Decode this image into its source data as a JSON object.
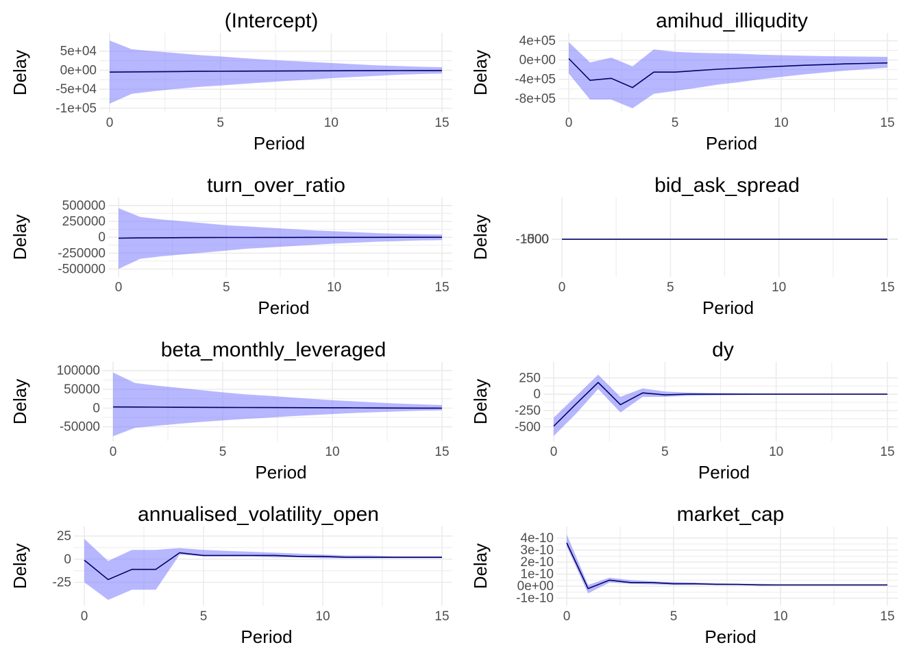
{
  "chart_data": [
    {
      "type": "line",
      "title": "(Intercept)",
      "xlabel": "Period",
      "ylabel": "Delay",
      "xlim": [
        0,
        15
      ],
      "ylim": [
        -100000,
        80000
      ],
      "x_ticks": [
        0,
        5,
        10,
        15
      ],
      "y_ticks": [
        -100000,
        -50000,
        0,
        50000
      ],
      "y_tick_labels": [
        "-1e+05",
        "-5e+04",
        "0e+00",
        "5e+04"
      ],
      "grid": true,
      "series": [
        {
          "x": [
            0,
            1,
            2,
            3,
            4,
            5,
            6,
            7,
            8,
            9,
            10,
            11,
            12,
            13,
            14,
            15
          ],
          "values": [
            -5000,
            -4500,
            -4000,
            -3500,
            -3000,
            -2800,
            -2500,
            -2300,
            -2000,
            -1800,
            -1600,
            -1400,
            -1200,
            -1000,
            -900,
            -800
          ],
          "lower": [
            -88000,
            -62000,
            -55000,
            -49000,
            -44000,
            -40000,
            -36000,
            -32000,
            -28000,
            -25000,
            -21000,
            -18000,
            -15000,
            -12000,
            -10000,
            -8500
          ],
          "upper": [
            78000,
            55000,
            50000,
            45000,
            40000,
            36000,
            32000,
            28000,
            25000,
            22000,
            19000,
            16000,
            13000,
            11000,
            9000,
            8000
          ]
        }
      ]
    },
    {
      "type": "line",
      "title": "amihud_illiqudity",
      "xlabel": "Period",
      "ylabel": "Delay",
      "xlim": [
        0,
        15
      ],
      "ylim": [
        -1000000,
        420000
      ],
      "x_ticks": [
        0,
        5,
        10,
        15
      ],
      "y_ticks": [
        -800000,
        -400000,
        0,
        400000
      ],
      "y_tick_labels": [
        "-8e+05",
        "-4e+05",
        "0e+00",
        "4e+05"
      ],
      "grid": true,
      "series": [
        {
          "x": [
            0,
            1,
            2,
            3,
            4,
            5,
            6,
            7,
            8,
            9,
            10,
            11,
            12,
            13,
            14,
            15
          ],
          "values": [
            30000,
            -420000,
            -380000,
            -570000,
            -250000,
            -250000,
            -220000,
            -190000,
            -170000,
            -150000,
            -130000,
            -110000,
            -95000,
            -80000,
            -70000,
            -60000
          ],
          "lower": [
            -280000,
            -820000,
            -820000,
            -1000000,
            -700000,
            -640000,
            -580000,
            -510000,
            -460000,
            -400000,
            -350000,
            -300000,
            -260000,
            -220000,
            -190000,
            -160000
          ],
          "upper": [
            370000,
            -50000,
            50000,
            -130000,
            220000,
            170000,
            150000,
            140000,
            130000,
            110000,
            100000,
            90000,
            80000,
            75000,
            70000,
            65000
          ]
        }
      ]
    },
    {
      "type": "line",
      "title": "turn_over_ratio",
      "xlabel": "Period",
      "ylabel": "Delay",
      "xlim": [
        0,
        15
      ],
      "ylim": [
        -560000,
        520000
      ],
      "x_ticks": [
        0,
        5,
        10,
        15
      ],
      "y_ticks": [
        -500000,
        -250000,
        0,
        250000,
        500000
      ],
      "y_tick_labels": [
        "-500000",
        "-250000",
        "0",
        "250000",
        "500000"
      ],
      "grid": true,
      "series": [
        {
          "x": [
            0,
            1,
            2,
            3,
            4,
            5,
            6,
            7,
            8,
            9,
            10,
            11,
            12,
            13,
            14,
            15
          ],
          "values": [
            -15000,
            -10000,
            -8000,
            -6000,
            -5000,
            -4000,
            -3500,
            -3000,
            -2500,
            -2000,
            -1800,
            -1500,
            -1200,
            -1000,
            -900,
            -800
          ],
          "lower": [
            -500000,
            -340000,
            -300000,
            -270000,
            -240000,
            -210000,
            -180000,
            -160000,
            -140000,
            -120000,
            -100000,
            -85000,
            -70000,
            -60000,
            -50000,
            -45000
          ],
          "upper": [
            460000,
            320000,
            280000,
            250000,
            220000,
            190000,
            170000,
            150000,
            130000,
            110000,
            95000,
            80000,
            65000,
            55000,
            48000,
            42000
          ]
        }
      ]
    },
    {
      "type": "line",
      "title": "bid_ask_spread",
      "xlabel": "Period",
      "ylabel": "Delay",
      "xlim": [
        0,
        15
      ],
      "ylim": [
        -1100000,
        1150000
      ],
      "x_ticks": [
        0,
        5,
        10,
        15
      ],
      "y_ticks": [
        -1000,
        -500,
        0,
        500,
        1000
      ],
      "y_tick_labels": [
        "-1000",
        "-500",
        "0",
        "500",
        "1000"
      ],
      "grid": true,
      "series": [
        {
          "x": [
            0,
            1,
            2,
            3,
            4,
            5,
            6,
            7,
            8,
            9,
            10,
            11,
            12,
            13,
            14,
            15
          ],
          "values": [
            20,
            15,
            10,
            8,
            6,
            5,
            4,
            3,
            2,
            1,
            0,
            -1,
            -2,
            -3,
            -4,
            -5
          ],
          "lower": [
            -950,
            -660,
            -580,
            -520,
            -460,
            -400,
            -350,
            -310,
            -270,
            -230,
            -200,
            -170,
            -140,
            -115,
            -95,
            -80
          ],
          "upper": [
            1100,
            770,
            700,
            630,
            560,
            490,
            430,
            380,
            330,
            290,
            250,
            210,
            180,
            150,
            120,
            100
          ]
        }
      ]
    },
    {
      "type": "line",
      "title": "beta_monthly_leveraged",
      "xlabel": "Period",
      "ylabel": "Delay",
      "xlim": [
        0,
        15
      ],
      "ylim": [
        -78000,
        105000
      ],
      "x_ticks": [
        0,
        5,
        10,
        15
      ],
      "y_ticks": [
        -50000,
        0,
        50000,
        100000
      ],
      "y_tick_labels": [
        "-50000",
        "0",
        "50000",
        "100000"
      ],
      "grid": true,
      "series": [
        {
          "x": [
            0,
            1,
            2,
            3,
            4,
            5,
            6,
            7,
            8,
            9,
            10,
            11,
            12,
            13,
            14,
            15
          ],
          "values": [
            3000,
            2800,
            2500,
            2200,
            2000,
            1800,
            1600,
            1400,
            1200,
            1000,
            800,
            600,
            400,
            200,
            0,
            -200
          ],
          "lower": [
            -75000,
            -53000,
            -47000,
            -42000,
            -37000,
            -33000,
            -29000,
            -26000,
            -22000,
            -19000,
            -16000,
            -13000,
            -11000,
            -9000,
            -7000,
            -6000
          ],
          "upper": [
            95000,
            67000,
            60000,
            54000,
            48000,
            42000,
            37000,
            33000,
            29000,
            25000,
            21000,
            18000,
            15000,
            12000,
            10000,
            8000
          ]
        }
      ]
    },
    {
      "type": "line",
      "title": "dy",
      "xlabel": "Period",
      "ylabel": "Delay",
      "xlim": [
        0,
        15
      ],
      "ylim": [
        -660,
        390
      ],
      "x_ticks": [
        0,
        5,
        10,
        15
      ],
      "y_ticks": [
        -500,
        -250,
        0,
        250
      ],
      "y_tick_labels": [
        "-500",
        "-250",
        "0",
        "250"
      ],
      "grid": true,
      "series": [
        {
          "x": [
            0,
            1,
            2,
            3,
            4,
            5,
            6,
            7,
            8,
            9,
            10,
            11,
            12,
            13,
            14,
            15
          ],
          "values": [
            -490,
            -150,
            180,
            -160,
            20,
            -10,
            0,
            0,
            0,
            0,
            0,
            0,
            0,
            0,
            0,
            0
          ],
          "lower": [
            -640,
            -300,
            80,
            -280,
            -40,
            -40,
            -25,
            -18,
            -14,
            -10,
            -8,
            -6,
            -5,
            -4,
            -3,
            -3
          ],
          "upper": [
            -360,
            -30,
            300,
            -40,
            90,
            40,
            25,
            18,
            14,
            10,
            8,
            6,
            5,
            4,
            3,
            3
          ]
        }
      ]
    },
    {
      "type": "line",
      "title": "annualised_volatility_open",
      "xlabel": "Period",
      "ylabel": "Delay",
      "xlim": [
        0,
        15
      ],
      "ylim": [
        -46,
        28
      ],
      "x_ticks": [
        0,
        5,
        10,
        15
      ],
      "y_ticks": [
        -25,
        0,
        25
      ],
      "y_tick_labels": [
        "-25",
        "0",
        "25"
      ],
      "grid": true,
      "series": [
        {
          "x": [
            0,
            1,
            2,
            3,
            4,
            5,
            6,
            7,
            8,
            9,
            10,
            11,
            12,
            13,
            14,
            15
          ],
          "values": [
            -1,
            -22,
            -11,
            -11,
            7,
            4,
            4,
            4,
            4,
            3,
            3,
            2,
            2,
            2,
            2,
            2
          ],
          "lower": [
            -25,
            -44,
            -33,
            -33,
            5,
            3,
            3,
            3,
            2,
            2,
            1,
            1,
            1,
            1,
            1,
            1
          ],
          "upper": [
            22,
            -2,
            10,
            10,
            12,
            10,
            9,
            8,
            7,
            6,
            5,
            4,
            4,
            3,
            3,
            3
          ]
        }
      ]
    },
    {
      "type": "line",
      "title": "market_cap",
      "xlabel": "Period",
      "ylabel": "Delay",
      "xlim": [
        0,
        15
      ],
      "ylim": [
        -1.3e-10,
        4.4e-10
      ],
      "x_ticks": [
        0,
        5,
        10,
        15
      ],
      "y_ticks": [
        -1e-10,
        0,
        1e-10,
        2e-10,
        3e-10,
        4e-10
      ],
      "y_tick_labels": [
        "-1e-10",
        "0e+00",
        "1e-10",
        "2e-10",
        "3e-10",
        "4e-10"
      ],
      "grid": true,
      "series": [
        {
          "x": [
            0,
            1,
            2,
            3,
            4,
            5,
            6,
            7,
            8,
            9,
            10,
            11,
            12,
            13,
            14,
            15
          ],
          "values": [
            3.6e-10,
            -2e-11,
            5e-11,
            3e-11,
            3e-11,
            2e-11,
            2e-11,
            1.5e-11,
            1.5e-11,
            1e-11,
            1e-11,
            1e-11,
            1e-11,
            1e-11,
            1e-11,
            1e-11
          ],
          "lower": [
            3.3e-10,
            -6e-11,
            3e-11,
            2e-11,
            1.5e-11,
            1e-11,
            1e-11,
            1e-11,
            8e-12,
            8e-12,
            8e-12,
            8e-12,
            8e-12,
            8e-12,
            8e-12,
            8e-12
          ],
          "upper": [
            4.3e-10,
            1e-11,
            7e-11,
            5e-11,
            4e-11,
            3.5e-11,
            3e-11,
            2.5e-11,
            2e-11,
            2e-11,
            1.5e-11,
            1.5e-11,
            1.5e-11,
            1.5e-11,
            1.5e-11,
            1.5e-11
          ]
        }
      ]
    }
  ],
  "colors": {
    "band": "#7b7bff",
    "line": "#000066",
    "grid": "#ebebeb",
    "text": "#000000",
    "tick": "#4d4d4d"
  }
}
